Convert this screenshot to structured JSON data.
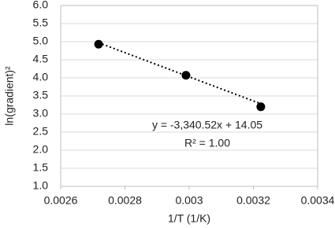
{
  "chart_data": {
    "type": "scatter",
    "x_label": "1/T (1/K)",
    "y_label": "ln(gradient)²",
    "series": [
      {
        "color": "#000000",
        "x": [
          0.002718,
          0.00299,
          0.003223
        ],
        "values": [
          4.93,
          4.07,
          3.2
        ]
      }
    ],
    "trendline": {
      "slope": -3340.52,
      "intercept": 14.05,
      "label": "y = -3,340.52x + 14.05",
      "r2_label": "R² = 1.00",
      "style": "dotted"
    },
    "xlim": [
      0.0026,
      0.0034
    ],
    "xticks": [
      0.0026,
      0.0028,
      0.003,
      0.0032,
      0.0034
    ],
    "ylim": [
      1,
      6
    ],
    "yticks": [
      {
        "value": 1,
        "label": "1.0"
      },
      {
        "value": 1.5,
        "label": "1.5"
      },
      {
        "value": 2,
        "label": "2.0"
      },
      {
        "value": 2.5,
        "label": "2.5"
      },
      {
        "value": 3,
        "label": "3.0"
      },
      {
        "value": 3.5,
        "label": "3.5"
      },
      {
        "value": 4,
        "label": "4.0"
      },
      {
        "value": 4.5,
        "label": "4.5"
      },
      {
        "value": 5,
        "label": "5.0"
      },
      {
        "value": 5.5,
        "label": "5.5"
      },
      {
        "value": 6,
        "label": "6.0"
      }
    ],
    "grid": true
  }
}
